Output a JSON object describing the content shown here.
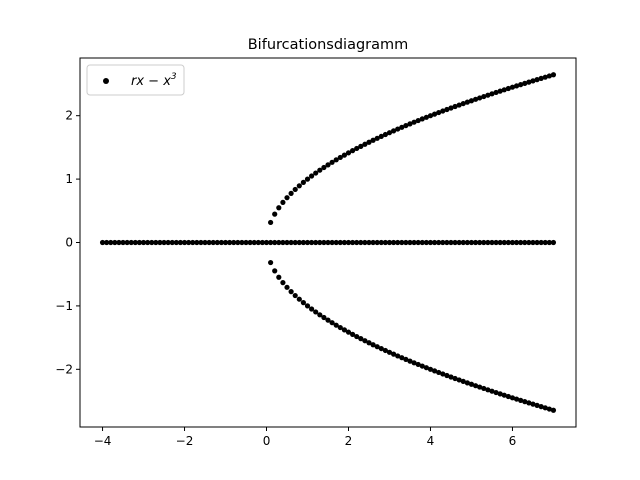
{
  "chart_data": {
    "type": "scatter",
    "title": "Bifurcationsdiagramm",
    "xlabel": "",
    "ylabel": "",
    "xlim": [
      -4.55,
      7.55
    ],
    "ylim": [
      -2.91,
      2.91
    ],
    "xticks": [
      -4,
      -2,
      0,
      2,
      4,
      6
    ],
    "yticks": [
      -2,
      -1,
      0,
      1,
      2
    ],
    "xtick_labels": [
      "−4",
      "−2",
      "0",
      "2",
      "4",
      "6"
    ],
    "ytick_labels": [
      "−2",
      "−1",
      "0",
      "1",
      "2"
    ],
    "grid": false,
    "legend": {
      "placement": "top-left",
      "entries": [
        {
          "label_text": "rx − x",
          "label_sup": "3"
        }
      ]
    },
    "marker_color": "#000000",
    "series": [
      {
        "name": "rx − x³",
        "description_rule": "for r<=0: x=0; for r>0: x=0, +sqrt(r), -sqrt(r)",
        "r_start": -4,
        "r_end": 7,
        "num_r": 111
      }
    ]
  }
}
